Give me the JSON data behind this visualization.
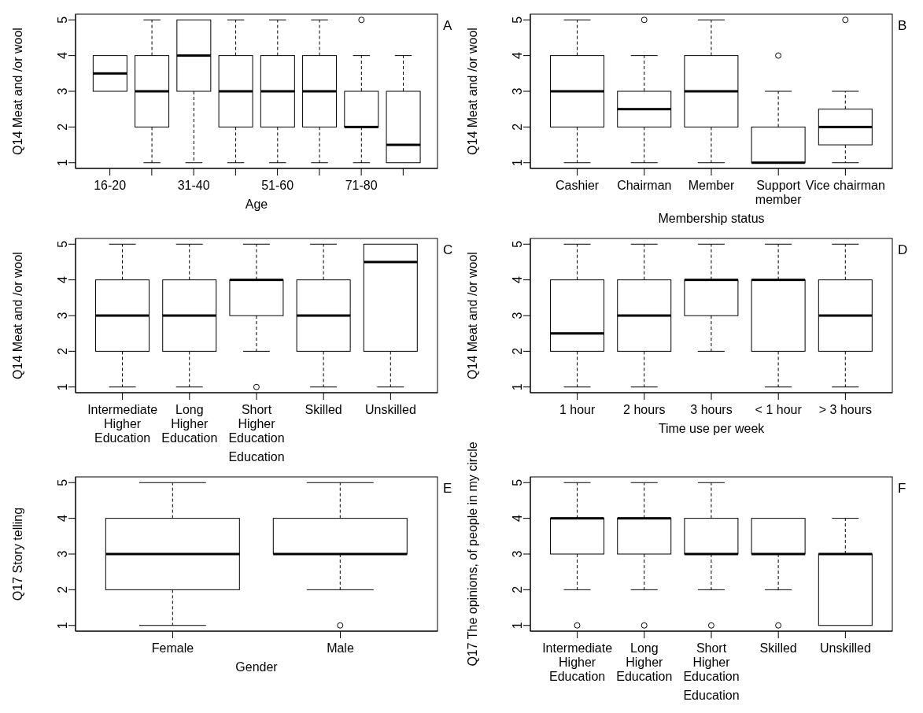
{
  "chart_data": [
    {
      "type": "box",
      "title": "A",
      "xlabel": "Age",
      "ylabel": "Q14 Meat and /or wool",
      "categories": [
        "16-20",
        null,
        "31-40",
        null,
        "51-60",
        null,
        "71-80",
        null
      ],
      "boxes": [
        {
          "low": 3,
          "q1": 3,
          "median": 3.5,
          "q3": 4,
          "high": 4
        },
        {
          "low": 1,
          "q1": 2,
          "median": 3,
          "q3": 4,
          "high": 5
        },
        {
          "low": 1,
          "q1": 3,
          "median": 4,
          "q3": 5,
          "high": 5
        },
        {
          "low": 1,
          "q1": 2,
          "median": 3,
          "q3": 4,
          "high": 5
        },
        {
          "low": 1,
          "q1": 2,
          "median": 3,
          "q3": 4,
          "high": 5
        },
        {
          "low": 1,
          "q1": 2,
          "median": 3,
          "q3": 4,
          "high": 5
        },
        {
          "low": 1,
          "q1": 2,
          "median": 2,
          "q3": 3,
          "high": 4,
          "outliers": [
            5
          ]
        },
        {
          "low": 1,
          "q1": 1,
          "median": 1.5,
          "q3": 3,
          "high": 4
        }
      ],
      "ylim": [
        0.84,
        5.16
      ],
      "yticks": [
        1,
        2,
        3,
        4,
        5
      ]
    },
    {
      "type": "box",
      "title": "B",
      "xlabel": "Membership status",
      "ylabel": "Q14 Meat and /or wool",
      "categories": [
        "Cashier",
        "Chairman",
        "Member",
        "Support\nmember",
        "Vice chairman"
      ],
      "boxes": [
        {
          "low": 1,
          "q1": 2,
          "median": 3,
          "q3": 4,
          "high": 5
        },
        {
          "low": 1,
          "q1": 2,
          "median": 2.5,
          "q3": 3,
          "high": 4,
          "outliers": [
            5
          ]
        },
        {
          "low": 1,
          "q1": 2,
          "median": 3,
          "q3": 4,
          "high": 5
        },
        {
          "low": 1,
          "q1": 1,
          "median": 1,
          "q3": 2,
          "high": 3,
          "outliers": [
            4
          ]
        },
        {
          "low": 1,
          "q1": 1.5,
          "median": 2,
          "q3": 2.5,
          "high": 3,
          "outliers": [
            5
          ]
        }
      ],
      "ylim": [
        0.84,
        5.16
      ],
      "yticks": [
        1,
        2,
        3,
        4,
        5
      ]
    },
    {
      "type": "box",
      "title": "C",
      "xlabel": "Education",
      "ylabel": "Q14 Meat and /or wool",
      "categories": [
        "Intermediate\nHigher\nEducation",
        "Long\nHigher\nEducation",
        "Short\nHigher\nEducation",
        "Skilled",
        "Unskilled"
      ],
      "boxes": [
        {
          "low": 1,
          "q1": 2,
          "median": 3,
          "q3": 4,
          "high": 5
        },
        {
          "low": 1,
          "q1": 2,
          "median": 3,
          "q3": 4,
          "high": 5
        },
        {
          "low": 2,
          "q1": 3,
          "median": 4,
          "q3": 4,
          "high": 5,
          "outliers": [
            1
          ]
        },
        {
          "low": 1,
          "q1": 2,
          "median": 3,
          "q3": 4,
          "high": 5
        },
        {
          "low": 1,
          "q1": 2,
          "median": 4.5,
          "q3": 5,
          "high": 5
        }
      ],
      "ylim": [
        0.84,
        5.16
      ],
      "yticks": [
        1,
        2,
        3,
        4,
        5
      ]
    },
    {
      "type": "box",
      "title": "D",
      "xlabel": "Time use per week",
      "ylabel": "Q14 Meat and /or wool",
      "categories": [
        "1 hour",
        "2 hours",
        "3 hours",
        "< 1 hour",
        "> 3 hours"
      ],
      "boxes": [
        {
          "low": 1,
          "q1": 2,
          "median": 2.5,
          "q3": 4,
          "high": 5
        },
        {
          "low": 1,
          "q1": 2,
          "median": 3,
          "q3": 4,
          "high": 5
        },
        {
          "low": 2,
          "q1": 3,
          "median": 4,
          "q3": 4,
          "high": 5
        },
        {
          "low": 1,
          "q1": 2,
          "median": 4,
          "q3": 4,
          "high": 5
        },
        {
          "low": 1,
          "q1": 2,
          "median": 3,
          "q3": 4,
          "high": 5
        }
      ],
      "ylim": [
        0.84,
        5.16
      ],
      "yticks": [
        1,
        2,
        3,
        4,
        5
      ]
    },
    {
      "type": "box",
      "title": "E",
      "xlabel": "Gender",
      "ylabel": "Q17 Story telling",
      "categories": [
        "Female",
        "Male"
      ],
      "boxes": [
        {
          "low": 1,
          "q1": 2,
          "median": 3,
          "q3": 4,
          "high": 5
        },
        {
          "low": 2,
          "q1": 3,
          "median": 3,
          "q3": 4,
          "high": 5,
          "outliers": [
            1
          ]
        }
      ],
      "ylim": [
        0.84,
        5.16
      ],
      "yticks": [
        1,
        2,
        3,
        4,
        5
      ]
    },
    {
      "type": "box",
      "title": "F",
      "xlabel": "Education",
      "ylabel": "Q17 The opinions, of people in my circle",
      "categories": [
        "Intermediate\nHigher\nEducation",
        "Long\nHigher\nEducation",
        "Short\nHigher\nEducation",
        "Skilled",
        "Unskilled"
      ],
      "boxes": [
        {
          "low": 2,
          "q1": 3,
          "median": 4,
          "q3": 4,
          "high": 5,
          "outliers": [
            1
          ]
        },
        {
          "low": 2,
          "q1": 3,
          "median": 4,
          "q3": 4,
          "high": 5,
          "outliers": [
            1
          ]
        },
        {
          "low": 2,
          "q1": 3,
          "median": 3,
          "q3": 4,
          "high": 5,
          "outliers": [
            1
          ]
        },
        {
          "low": 2,
          "q1": 3,
          "median": 3,
          "q3": 4,
          "high": 4,
          "outliers": [
            1
          ]
        },
        {
          "low": 1,
          "q1": 1,
          "median": 3,
          "q3": 3,
          "high": 4
        }
      ],
      "ylim": [
        0.84,
        5.16
      ],
      "yticks": [
        1,
        2,
        3,
        4,
        5
      ]
    }
  ]
}
